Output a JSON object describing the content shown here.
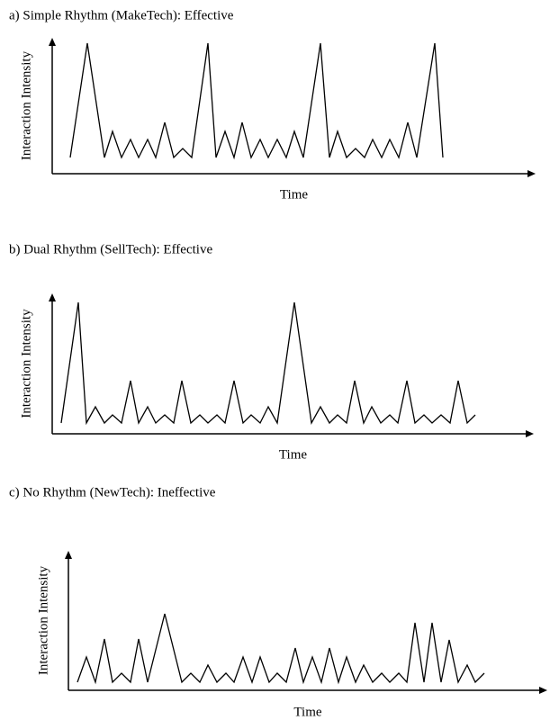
{
  "chart_data": [
    {
      "type": "line",
      "title": "a)  Simple Rhythm (MakeTech): Effective",
      "xlabel": "Time",
      "ylabel": "Interaction Intensity",
      "color": "#000000",
      "xlim": [
        0,
        537
      ],
      "ylim": [
        0,
        151
      ],
      "x": [
        20,
        39,
        58,
        67,
        77,
        87,
        96,
        106,
        115,
        125,
        135,
        145,
        155,
        173,
        182,
        192,
        202,
        211,
        221,
        231,
        240,
        250,
        260,
        269,
        279,
        298,
        308,
        317,
        327,
        337,
        347,
        356,
        366,
        375,
        385,
        395,
        405,
        425,
        434
      ],
      "values": [
        18,
        145,
        18,
        47,
        18,
        38,
        18,
        38,
        18,
        57,
        18,
        28,
        18,
        145,
        18,
        47,
        18,
        57,
        18,
        38,
        18,
        38,
        18,
        47,
        18,
        145,
        18,
        47,
        18,
        28,
        18,
        38,
        18,
        38,
        18,
        57,
        18,
        145,
        18
      ]
    },
    {
      "type": "line",
      "title": "b)  Dual Rhythm (SellTech): Effective",
      "xlabel": "Time",
      "ylabel": "Interaction Intensity",
      "color": "#000000",
      "xlim": [
        0,
        535
      ],
      "ylim": [
        0,
        156
      ],
      "x": [
        10,
        29,
        38,
        48,
        58,
        67,
        77,
        87,
        96,
        106,
        115,
        125,
        135,
        144,
        154,
        164,
        173,
        183,
        192,
        202,
        212,
        221,
        231,
        240,
        250,
        269,
        288,
        298,
        308,
        317,
        327,
        336,
        346,
        355,
        365,
        375,
        384,
        394,
        403,
        413,
        422,
        432,
        442,
        451,
        461,
        470
      ],
      "values": [
        12,
        146,
        12,
        30,
        12,
        21,
        12,
        59,
        12,
        30,
        12,
        21,
        12,
        59,
        12,
        21,
        12,
        21,
        12,
        59,
        12,
        21,
        12,
        30,
        12,
        146,
        12,
        30,
        12,
        21,
        12,
        59,
        12,
        30,
        12,
        21,
        12,
        59,
        12,
        21,
        12,
        21,
        12,
        59,
        12,
        21
      ]
    },
    {
      "type": "line",
      "title": "c) No Rhythm (NewTech): Ineffective",
      "xlabel": "Time",
      "ylabel": "Interaction Intensity",
      "color": "#000000",
      "xlim": [
        0,
        532
      ],
      "ylim": [
        0,
        155
      ],
      "x": [
        10,
        20,
        30,
        40,
        49,
        59,
        69,
        78,
        88,
        107,
        126,
        136,
        146,
        155,
        165,
        175,
        184,
        194,
        204,
        213,
        223,
        232,
        242,
        252,
        261,
        271,
        281,
        290,
        300,
        309,
        319,
        328,
        338,
        348,
        357,
        367,
        376,
        385,
        395,
        404,
        414,
        423,
        433,
        443,
        452,
        462
      ],
      "values": [
        9,
        37,
        9,
        57,
        9,
        19,
        9,
        57,
        9,
        85,
        9,
        19,
        9,
        28,
        9,
        19,
        9,
        37,
        9,
        37,
        9,
        19,
        9,
        47,
        9,
        37,
        9,
        47,
        9,
        37,
        9,
        28,
        9,
        19,
        9,
        19,
        9,
        75,
        9,
        75,
        9,
        56,
        9,
        28,
        9,
        19
      ]
    }
  ]
}
